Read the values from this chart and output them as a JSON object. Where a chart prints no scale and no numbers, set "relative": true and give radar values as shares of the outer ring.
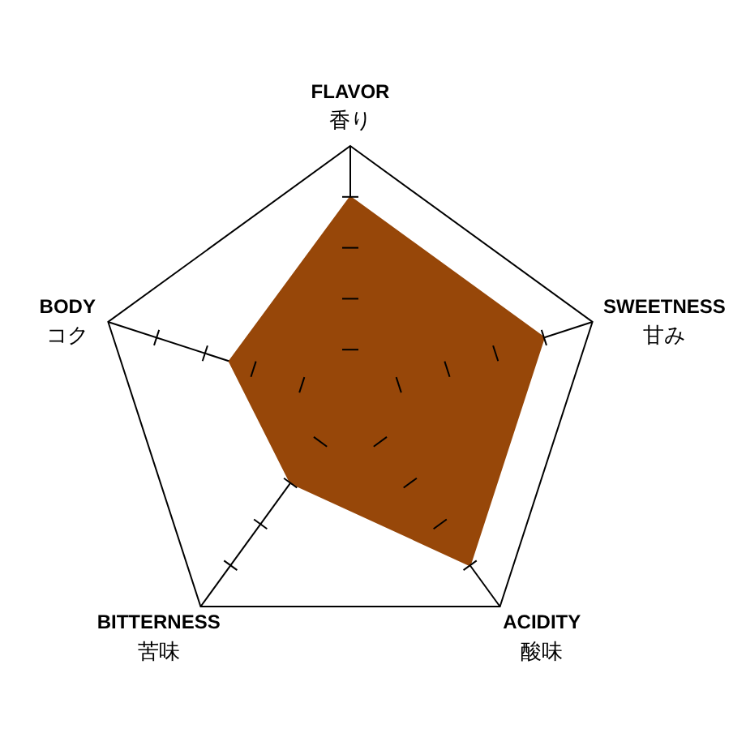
{
  "chart_data": {
    "type": "radar",
    "categories": [
      "FLAVOR\n香り",
      "SWEETNESS\n甘み",
      "ACIDITY\n酸味",
      "BITTERNESS\n苦味",
      "BODY\nコク"
    ],
    "series": [
      {
        "color": "#974709",
        "values": [
          0.8,
          0.8,
          0.8,
          0.4,
          0.5
        ]
      }
    ],
    "relative": true,
    "grid": true
  }
}
